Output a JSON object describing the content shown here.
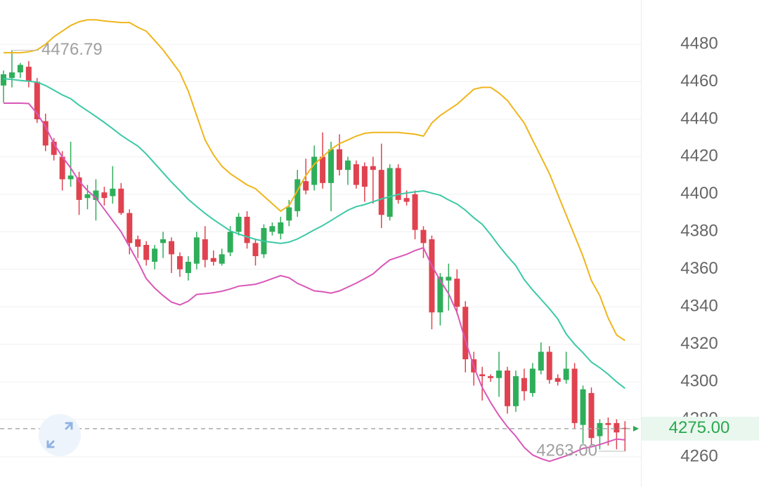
{
  "chart_data": {
    "type": "candlestick",
    "open": [
      4458,
      4462,
      4465,
      4468,
      4460,
      4439,
      4428,
      4420,
      4408,
      4409,
      4398,
      4397,
      4401,
      4399,
      4403,
      4390,
      4376,
      4373,
      4364,
      4374,
      4375,
      4367,
      4358,
      4363,
      4376,
      4366,
      4363,
      4369,
      4380,
      4388,
      4374,
      4368,
      4380,
      4379,
      4386,
      4391,
      4407,
      4405,
      4420,
      4406,
      4424,
      4413,
      4416,
      4415,
      4415,
      4413,
      4388,
      4414,
      4398,
      4400,
      4381,
      4376,
      4337,
      4354,
      4355,
      4340,
      4312,
      4304,
      4303,
      4302,
      4306,
      4287,
      4302,
      4294,
      4306,
      4316,
      4302,
      4301,
      4307,
      4277,
      4294,
      4271,
      4278,
      4278,
      4275.4
    ],
    "high": [
      4466,
      4476.79,
      4470,
      4471,
      4462,
      4443,
      4430,
      4423,
      4428,
      4412,
      4405,
      4408,
      4404,
      4415,
      4406,
      4392,
      4378,
      4375,
      4373,
      4380,
      4377,
      4369,
      4367,
      4380,
      4383,
      4370,
      4371,
      4383,
      4390,
      4391,
      4376,
      4384,
      4385,
      4388,
      4397,
      4413,
      4419,
      4426,
      4433,
      4428,
      4432,
      4420,
      4418,
      4417,
      4420,
      4427,
      4416,
      4416,
      4402,
      4402,
      4383,
      4378,
      4358,
      4363,
      4360,
      4343,
      4316,
      4308,
      4304,
      4316,
      4308,
      4306,
      4307,
      4310,
      4321,
      4319,
      4304,
      4316,
      4310,
      4298,
      4297,
      4280,
      4281,
      4280,
      4279
    ],
    "low": [
      4449,
      4457,
      4462,
      4457,
      4438,
      4423,
      4418,
      4402,
      4404,
      4389,
      4392,
      4386,
      4394,
      4395,
      4389,
      4368,
      4366,
      4362,
      4360,
      4366,
      4358,
      4356,
      4354,
      4360,
      4361,
      4362,
      4362,
      4367,
      4378,
      4371,
      4362,
      4366,
      4378,
      4376,
      4383,
      4388,
      4400,
      4402,
      4403,
      4391,
      4410,
      4405,
      4403,
      4396,
      4395,
      4382,
      4386,
      4395,
      4394,
      4376,
      4366,
      4328,
      4330,
      4338,
      4336,
      4305,
      4298,
      4290,
      4300,
      4292,
      4283,
      4284,
      4290,
      4292,
      4304,
      4299,
      4298,
      4299,
      4275,
      4267,
      4266,
      4264,
      4266,
      4264,
      4263
    ],
    "close": [
      4464,
      4465,
      4469,
      4460,
      4440,
      4426,
      4421,
      4408,
      4410,
      4397,
      4400,
      4402,
      4398,
      4403,
      4390,
      4374,
      4372,
      4365,
      4371,
      4376,
      4368,
      4360,
      4364,
      4377,
      4365,
      4364,
      4368,
      4380,
      4388,
      4374,
      4367,
      4382,
      4383,
      4385,
      4393,
      4408,
      4402,
      4420,
      4406,
      4424,
      4413,
      4418,
      4405,
      4404,
      4413,
      4389,
      4414,
      4397,
      4396,
      4381,
      4374,
      4337,
      4356,
      4356,
      4340,
      4312,
      4305,
      4303,
      4302,
      4306,
      4287,
      4303,
      4295,
      4307,
      4316,
      4301,
      4300,
      4307,
      4278,
      4296,
      4270,
      4278,
      4277,
      4273,
      4275
    ],
    "up_color": "#2fae5a",
    "down_color": "#e0424f",
    "lines": [
      {
        "color": "#efb51c",
        "values": [
          4475.5,
          4475.5,
          4475.5,
          4476,
          4477,
          4480,
          4484,
          4487,
          4490,
          4492,
          4493,
          4493,
          4492.4,
          4492,
          4491.6,
          4491.6,
          4489,
          4487,
          4482,
          4477,
          4471,
          4465,
          4455,
          4442,
          4429,
          4421,
          4415,
          4411,
          4408,
          4405,
          4403,
          4399,
          4395,
          4391,
          4394,
          4402,
          4410,
          4416,
          4420,
          4424,
          4427,
          4429,
          4431,
          4432.5,
          4433,
          4433,
          4433,
          4433,
          4432.5,
          4432,
          4431,
          4438,
          4442,
          4445,
          4448,
          4452,
          4456,
          4457,
          4457,
          4454,
          4450,
          4444,
          4438,
          4429,
          4420,
          4411,
          4400,
          4389,
          4378,
          4367,
          4354,
          4346,
          4334,
          4325,
          4322
        ]
      },
      {
        "color": "#3cc9a6",
        "values": [
          4461.7,
          4461.2,
          4460.7,
          4460.3,
          4459.8,
          4458,
          4455.5,
          4453,
          4451,
          4447.5,
          4444.5,
          4441.5,
          4438.3,
          4435,
          4431.5,
          4428.5,
          4425.7,
          4421.5,
          4416.5,
          4411.5,
          4406.5,
          4402,
          4397.3,
          4393.5,
          4389.8,
          4386.5,
          4383.5,
          4380.5,
          4378.8,
          4377.3,
          4376,
          4375,
          4374.4,
          4373.8,
          4374.5,
          4376.2,
          4378.5,
          4381,
          4383.3,
          4386,
          4388.8,
          4391.5,
          4393.4,
          4394.5,
          4396,
          4397.5,
          4398.7,
          4399.9,
          4400.7,
          4401.3,
          4401.8,
          4400.6,
          4399.5,
          4397,
          4394.8,
          4391.5,
          4387.5,
          4384,
          4378.5,
          4372.5,
          4367,
          4362,
          4354.5,
          4349,
          4344,
          4339,
          4333.5,
          4325.5,
          4320,
          4315.5,
          4310.5,
          4307.5,
          4304,
          4300,
          4296.5
        ]
      },
      {
        "color": "#d957b8",
        "values": [
          4448.6,
          4448.6,
          4448.6,
          4448.4,
          4443,
          4436,
          4427,
          4420,
          4414,
          4407,
          4402,
          4398,
          4392,
          4386,
          4380,
          4372,
          4364,
          4355,
          4350,
          4346,
          4342.5,
          4341,
          4343,
          4346.6,
          4347,
          4347.5,
          4348.3,
          4349.5,
          4351,
          4351.5,
          4352,
          4353.4,
          4355,
          4356.6,
          4355.5,
          4352.5,
          4350.5,
          4348.5,
          4348,
          4347.3,
          4348.5,
          4350.5,
          4352.6,
          4355,
          4357.5,
          4361.5,
          4365,
          4366.5,
          4368,
          4370,
          4371.5,
          4362,
          4354,
          4347,
          4337,
          4322,
          4308,
          4297,
          4289,
          4282,
          4276,
          4271,
          4265,
          4261,
          4259,
          4257.6,
          4259,
          4260.5,
          4262.5,
          4264.5,
          4265.3,
          4266.5,
          4268,
          4269.5,
          4269
        ]
      }
    ],
    "ylim": [
      4243.9,
      4503.6
    ],
    "yticks": [
      4260,
      4280,
      4300,
      4320,
      4340,
      4360,
      4380,
      4400,
      4420,
      4440,
      4460,
      4480
    ],
    "grid": true,
    "high_label": 4476.79,
    "low_label": {
      "value": 4263,
      "label": "4263.00"
    },
    "last_price": {
      "value": 4275,
      "label": "4275.00"
    },
    "last_price_color": "#2aa84f"
  }
}
